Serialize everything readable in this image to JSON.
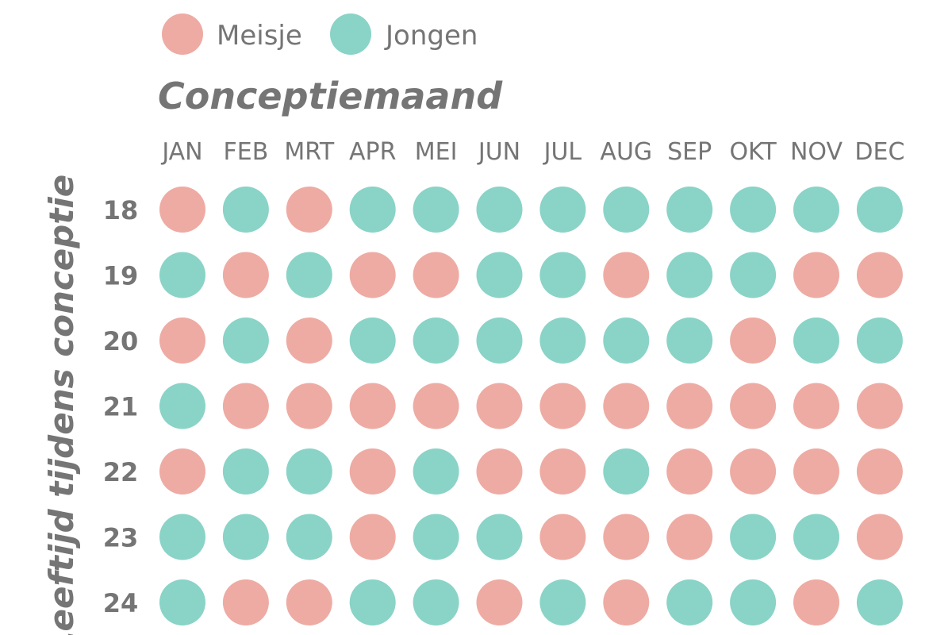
{
  "chart_data": {
    "type": "heatmap",
    "title": "Conceptiemaand",
    "ylabel": "Leeftijd tijdens conceptie",
    "legend": [
      {
        "key": "M",
        "label": "Meisje",
        "color": "#EEABA3"
      },
      {
        "key": "J",
        "label": "Jongen",
        "color": "#8AD3C7"
      }
    ],
    "columns": [
      "JAN",
      "FEB",
      "MRT",
      "APR",
      "MEI",
      "JUN",
      "JUL",
      "AUG",
      "SEP",
      "OKT",
      "NOV",
      "DEC"
    ],
    "rows": [
      {
        "age": "18",
        "values": [
          "M",
          "J",
          "M",
          "J",
          "J",
          "J",
          "J",
          "J",
          "J",
          "J",
          "J",
          "J"
        ]
      },
      {
        "age": "19",
        "values": [
          "J",
          "M",
          "J",
          "M",
          "M",
          "J",
          "J",
          "M",
          "J",
          "J",
          "M",
          "M"
        ]
      },
      {
        "age": "20",
        "values": [
          "M",
          "J",
          "M",
          "J",
          "J",
          "J",
          "J",
          "J",
          "J",
          "M",
          "J",
          "J"
        ]
      },
      {
        "age": "21",
        "values": [
          "J",
          "M",
          "M",
          "M",
          "M",
          "M",
          "M",
          "M",
          "M",
          "M",
          "M",
          "M"
        ]
      },
      {
        "age": "22",
        "values": [
          "M",
          "J",
          "J",
          "M",
          "J",
          "M",
          "M",
          "J",
          "M",
          "M",
          "M",
          "M"
        ]
      },
      {
        "age": "23",
        "values": [
          "J",
          "J",
          "J",
          "M",
          "J",
          "J",
          "M",
          "M",
          "M",
          "J",
          "J",
          "M"
        ]
      },
      {
        "age": "24",
        "values": [
          "J",
          "M",
          "M",
          "J",
          "J",
          "M",
          "J",
          "M",
          "J",
          "J",
          "M",
          "J"
        ]
      }
    ]
  }
}
